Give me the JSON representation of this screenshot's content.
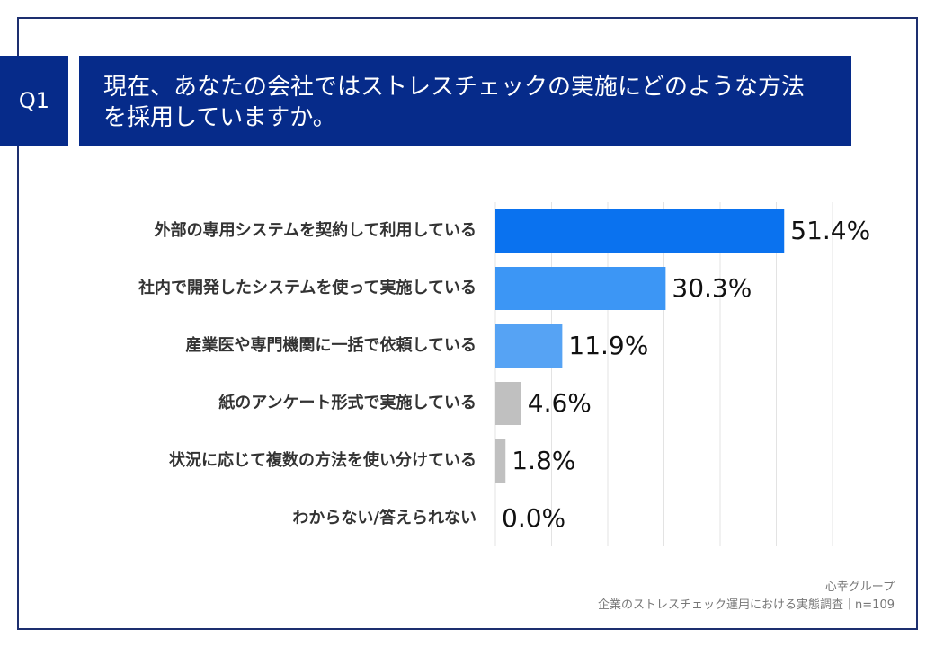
{
  "question": {
    "badge": "Q1",
    "line1": "現在、あなたの会社ではストレスチェックの実施にどのような方法",
    "line2": "を採用していますか。"
  },
  "chart_data": {
    "type": "bar",
    "orientation": "horizontal",
    "categories": [
      "外部の専用システムを契約して利用している",
      "社内で開発したシステムを使って実施している",
      "産業医や専門機関に一括で依頼している",
      "紙のアンケート形式で実施している",
      "状況に応じて複数の方法を使い分けている",
      "わからない/答えられない"
    ],
    "values": [
      51.4,
      30.3,
      11.9,
      4.6,
      1.8,
      0.0
    ],
    "data_labels": [
      "51.4%",
      "30.3%",
      "11.9%",
      "4.6%",
      "1.8%",
      "0.0%"
    ],
    "bar_colors": [
      "#0a72ef",
      "#3c96f5",
      "#56a3f4",
      "#c0c0c0",
      "#c0c0c0",
      "#c0c0c0"
    ],
    "xlim": [
      0,
      60
    ],
    "grid": true
  },
  "source": {
    "line1": "心幸グループ",
    "line2": "企業のストレスチェック運用における実態調査｜n=109"
  }
}
